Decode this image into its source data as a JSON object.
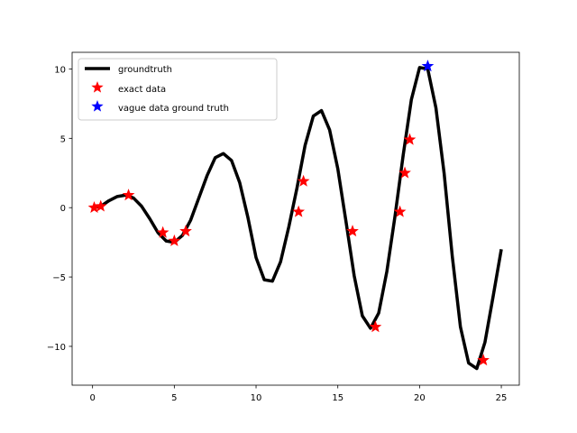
{
  "chart_data": {
    "type": "line",
    "title": "",
    "xlabel": "",
    "ylabel": "",
    "xlim": [
      -1.25,
      26.1
    ],
    "ylim": [
      -12.8,
      11.2
    ],
    "xticks": [
      0,
      5,
      10,
      15,
      20,
      25
    ],
    "yticks": [
      -10,
      -5,
      0,
      5,
      10
    ],
    "xtick_labels": [
      "0",
      "5",
      "10",
      "15",
      "20",
      "25"
    ],
    "ytick_labels": [
      "−10",
      "−5",
      "0",
      "5",
      "10"
    ],
    "grid": false,
    "legend_position": "top-left",
    "series": [
      {
        "name": "groundtruth",
        "kind": "line",
        "color": "#000000",
        "x": [
          0,
          0.5,
          1,
          1.5,
          2,
          2.5,
          3,
          3.5,
          4,
          4.5,
          5,
          5.5,
          6,
          6.5,
          7,
          7.5,
          8,
          8.5,
          9,
          9.5,
          10,
          10.5,
          11,
          11.5,
          12,
          12.5,
          13,
          13.5,
          14,
          14.5,
          15,
          15.5,
          16,
          16.5,
          17,
          17.5,
          18,
          18.5,
          19,
          19.5,
          20,
          20.5,
          21,
          21.5,
          22,
          22.5,
          23,
          23.5,
          24,
          24.5,
          25
        ],
        "y": [
          0,
          0.1,
          0.5,
          0.8,
          0.9,
          0.7,
          0.1,
          -0.8,
          -1.8,
          -2.4,
          -2.5,
          -2.0,
          -0.9,
          0.7,
          2.3,
          3.6,
          3.9,
          3.4,
          1.8,
          -0.7,
          -3.6,
          -5.2,
          -5.3,
          -3.9,
          -1.4,
          1.4,
          4.5,
          6.6,
          7.0,
          5.6,
          2.8,
          -1.0,
          -4.9,
          -7.8,
          -8.7,
          -7.6,
          -4.6,
          -0.6,
          3.8,
          7.8,
          10.1,
          10.0,
          7.2,
          2.5,
          -3.5,
          -8.6,
          -11.2,
          -11.6,
          -9.7,
          -6.4,
          -3.0
        ]
      },
      {
        "name": "exact data",
        "kind": "markers",
        "marker": "star",
        "color": "#ff0000",
        "x": [
          0.1,
          0.5,
          2.2,
          4.3,
          5.0,
          5.7,
          12.6,
          12.9,
          15.9,
          17.3,
          18.8,
          19.1,
          19.4,
          23.9
        ],
        "y": [
          0.0,
          0.1,
          0.9,
          -1.8,
          -2.4,
          -1.7,
          -0.3,
          1.9,
          -1.7,
          -8.6,
          -0.3,
          2.5,
          4.9,
          -11.0
        ]
      },
      {
        "name": "vague data ground truth",
        "kind": "markers",
        "marker": "star",
        "color": "#0000ff",
        "x": [
          20.5
        ],
        "y": [
          10.2
        ]
      }
    ]
  }
}
